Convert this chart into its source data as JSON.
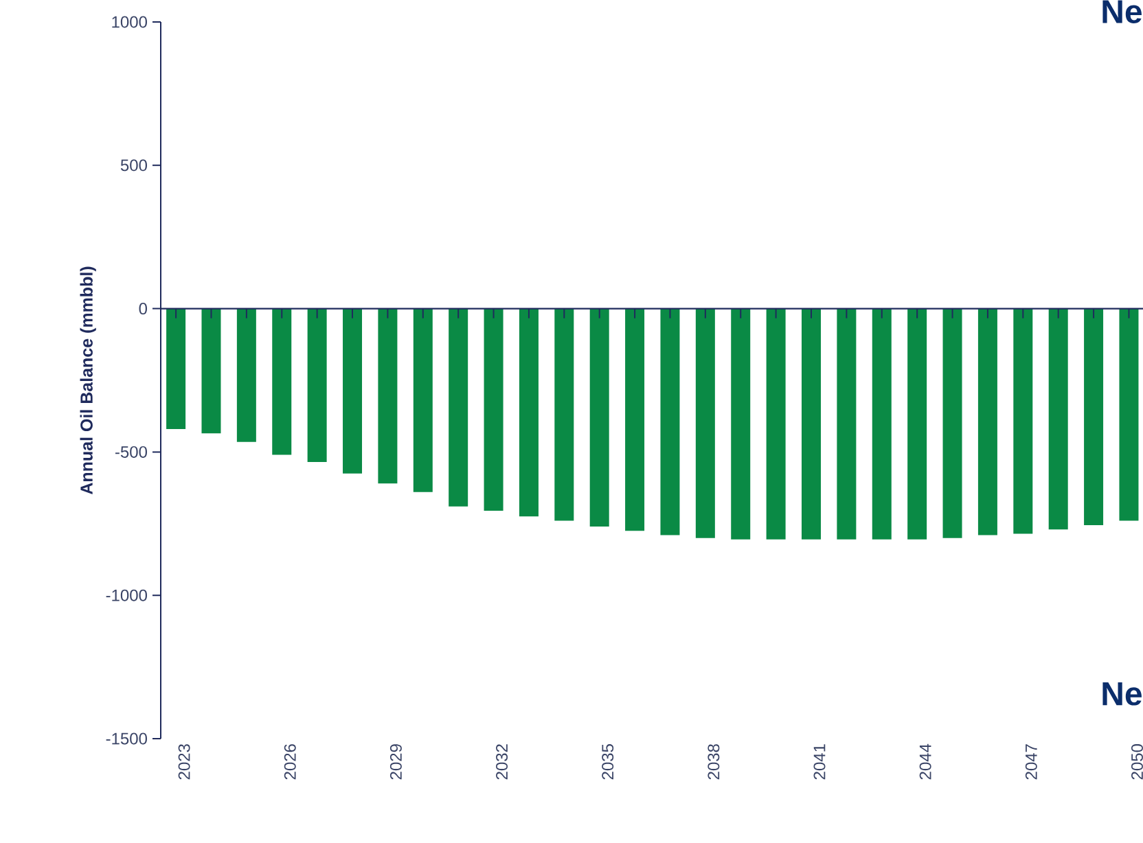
{
  "chart_data": {
    "type": "bar",
    "ylabel": "Annual Oil Balance (mmbbl)",
    "categories": [
      "2023",
      null,
      null,
      "2026",
      null,
      null,
      "2029",
      null,
      null,
      "2032",
      null,
      null,
      "2035",
      null,
      null,
      "2038",
      null,
      null,
      "2041",
      null,
      null,
      "2044",
      null,
      null,
      "2047",
      null,
      null,
      "2050"
    ],
    "values": [
      -420,
      -435,
      -465,
      -510,
      -535,
      -575,
      -610,
      -640,
      -690,
      -705,
      -725,
      -740,
      -760,
      -775,
      -790,
      -800,
      -805,
      -805,
      -805,
      -805,
      -805,
      -805,
      -800,
      -790,
      -785,
      -770,
      -755,
      -740
    ],
    "color": "#0a8a45",
    "ylim": [
      -1500,
      1000
    ],
    "yticks": [
      -1500,
      -1000,
      -500,
      0,
      500,
      1000
    ],
    "grid": false,
    "annotations": [
      "Ne",
      "Ne"
    ]
  }
}
